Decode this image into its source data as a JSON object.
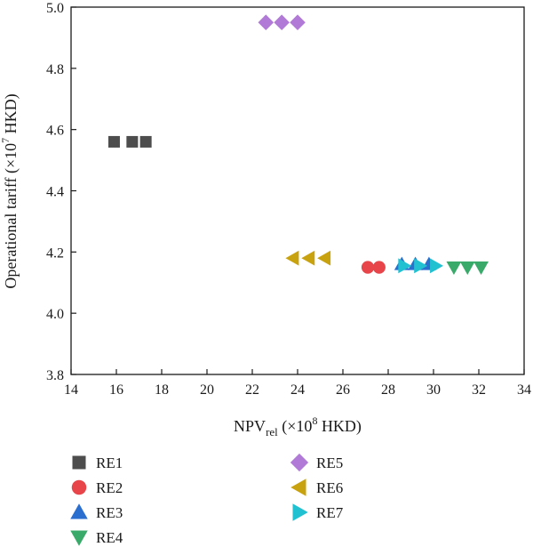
{
  "chart_data": {
    "type": "scatter",
    "title": "",
    "xlabel": {
      "main": "NPV",
      "sub": "rel",
      "rest": " (×10",
      "sup": "8",
      "tail": " HKD)"
    },
    "ylabel": {
      "main": "Operational tariff (×10",
      "sup": "7",
      "tail": " HKD)"
    },
    "xlim": [
      14,
      34
    ],
    "ylim": [
      3.8,
      5.0
    ],
    "xticks": [
      "14",
      "16",
      "18",
      "20",
      "22",
      "24",
      "26",
      "28",
      "30",
      "32",
      "34"
    ],
    "yticks": [
      "3.8",
      "4.0",
      "4.2",
      "4.4",
      "4.6",
      "4.8",
      "5.0"
    ],
    "grid": false,
    "legend_position": "bottom",
    "series": [
      {
        "name": "RE1",
        "marker": "square",
        "color": "#4d4d4d",
        "x": [
          15.9,
          16.7,
          17.3
        ],
        "y": [
          4.56,
          4.56,
          4.56
        ]
      },
      {
        "name": "RE2",
        "marker": "circle",
        "color": "#e8454a",
        "x": [
          27.1,
          27.6
        ],
        "y": [
          4.15,
          4.15
        ]
      },
      {
        "name": "RE3",
        "marker": "triangle-up",
        "color": "#2a6fd0",
        "x": [
          28.6,
          29.2,
          29.8
        ],
        "y": [
          4.16,
          4.16,
          4.16
        ]
      },
      {
        "name": "RE4",
        "marker": "triangle-down",
        "color": "#3aaa6a",
        "x": [
          30.9,
          31.5,
          32.1
        ],
        "y": [
          4.15,
          4.15,
          4.15
        ]
      },
      {
        "name": "RE5",
        "marker": "diamond",
        "color": "#b07ad6",
        "x": [
          22.6,
          23.3,
          24.0
        ],
        "y": [
          4.95,
          4.95,
          4.95
        ]
      },
      {
        "name": "RE6",
        "marker": "triangle-left",
        "color": "#c9a20f",
        "x": [
          23.8,
          24.5,
          25.2
        ],
        "y": [
          4.18,
          4.18,
          4.18
        ]
      },
      {
        "name": "RE7",
        "marker": "triangle-right",
        "color": "#22c1d1",
        "x": [
          28.7,
          29.4,
          30.1
        ],
        "y": [
          4.155,
          4.155,
          4.155
        ]
      }
    ]
  }
}
